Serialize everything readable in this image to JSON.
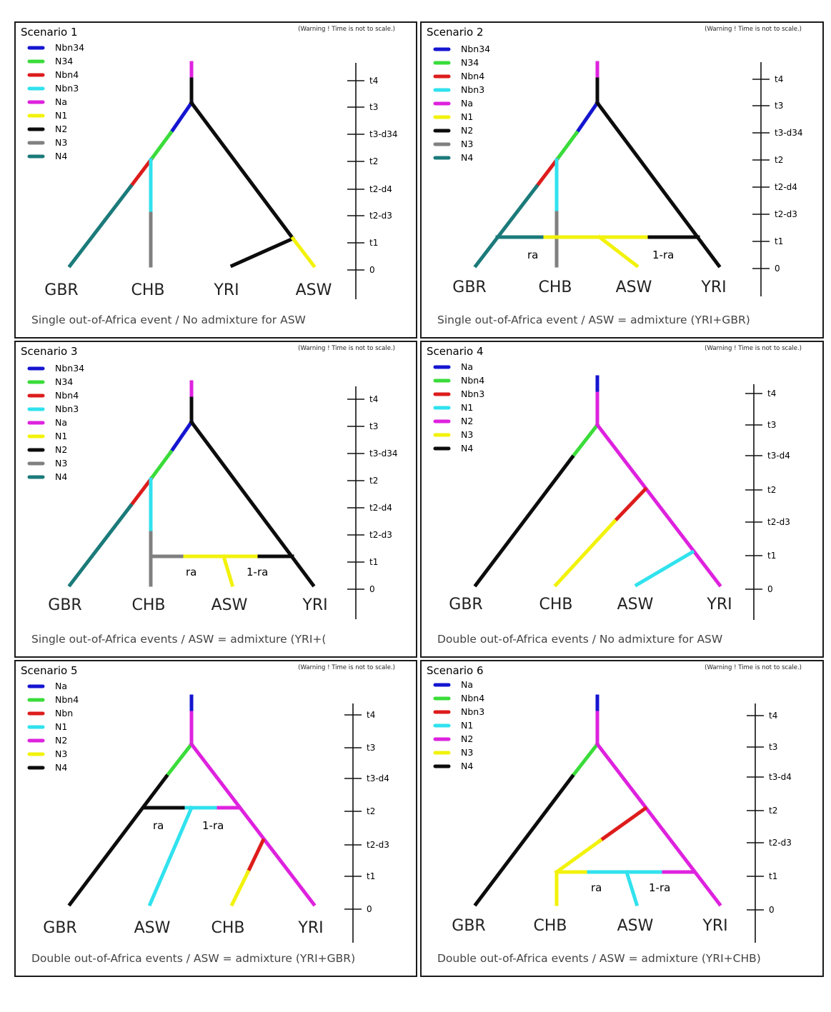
{
  "colors": {
    "blue": "#1515d0",
    "green": "#3adc3a",
    "red": "#dd1c1c",
    "cyan": "#30e2ee",
    "magenta": "#de22de",
    "yellow": "#f2f20c",
    "black": "#0c0c0c",
    "gray": "#808080",
    "teal": "#1b7a7a",
    "border": "#1a1a1a"
  },
  "warning_text": "(Warning ! Time is not to scale.)",
  "scenarios": [
    {
      "title": "Scenario 1",
      "legend": [
        {
          "label": "Nbn34",
          "color": "blue"
        },
        {
          "label": "N34",
          "color": "green"
        },
        {
          "label": "Nbn4",
          "color": "red"
        },
        {
          "label": "Nbn3",
          "color": "cyan"
        },
        {
          "label": "Na",
          "color": "magenta"
        },
        {
          "label": "N1",
          "color": "yellow"
        },
        {
          "label": "N2",
          "color": "black"
        },
        {
          "label": "N3",
          "color": "gray"
        },
        {
          "label": "N4",
          "color": "teal"
        }
      ],
      "time_labels": [
        "t4",
        "t3",
        "t3-d34",
        "t2",
        "t2-d4",
        "t2-d3",
        "t1",
        "0"
      ],
      "populations": [
        "GBR",
        "CHB",
        "YRI",
        "ASW"
      ],
      "caption": "Single out-of-Africa event / No admixture for ASW",
      "admix_labels": []
    },
    {
      "title": "Scenario 2",
      "legend": [
        {
          "label": "Nbn34",
          "color": "blue"
        },
        {
          "label": "N34",
          "color": "green"
        },
        {
          "label": "Nbn4",
          "color": "red"
        },
        {
          "label": "Nbn3",
          "color": "cyan"
        },
        {
          "label": "Na",
          "color": "magenta"
        },
        {
          "label": "N1",
          "color": "yellow"
        },
        {
          "label": "N2",
          "color": "black"
        },
        {
          "label": "N3",
          "color": "gray"
        },
        {
          "label": "N4",
          "color": "teal"
        }
      ],
      "time_labels": [
        "t4",
        "t3",
        "t3-d34",
        "t2",
        "t2-d4",
        "t2-d3",
        "t1",
        "0"
      ],
      "populations": [
        "GBR",
        "CHB",
        "ASW",
        "YRI"
      ],
      "caption": "Single out-of-Africa event / ASW = admixture (YRI+GBR)",
      "admix_labels": [
        "ra",
        "1-ra"
      ]
    },
    {
      "title": "Scenario 3",
      "legend": [
        {
          "label": "Nbn34",
          "color": "blue"
        },
        {
          "label": "N34",
          "color": "green"
        },
        {
          "label": "Nbn4",
          "color": "red"
        },
        {
          "label": "Nbn3",
          "color": "cyan"
        },
        {
          "label": "Na",
          "color": "magenta"
        },
        {
          "label": "N1",
          "color": "yellow"
        },
        {
          "label": "N2",
          "color": "black"
        },
        {
          "label": "N3",
          "color": "gray"
        },
        {
          "label": "N4",
          "color": "teal"
        }
      ],
      "time_labels": [
        "t4",
        "t3",
        "t3-d34",
        "t2",
        "t2-d4",
        "t2-d3",
        "t1",
        "0"
      ],
      "populations": [
        "GBR",
        "CHB",
        "ASW",
        "YRI"
      ],
      "caption": "Single out-of-Africa events / ASW = admixture (YRI+(",
      "admix_labels": [
        "ra",
        "1-ra"
      ]
    },
    {
      "title": "Scenario 4",
      "legend": [
        {
          "label": "Na",
          "color": "blue"
        },
        {
          "label": "Nbn4",
          "color": "green"
        },
        {
          "label": "Nbn3",
          "color": "red"
        },
        {
          "label": "N1",
          "color": "cyan"
        },
        {
          "label": "N2",
          "color": "magenta"
        },
        {
          "label": "N3",
          "color": "yellow"
        },
        {
          "label": "N4",
          "color": "black"
        }
      ],
      "time_labels": [
        "t4",
        "t3",
        "t3-d4",
        "t2",
        "t2-d3",
        "t1",
        "0"
      ],
      "populations": [
        "GBR",
        "CHB",
        "ASW",
        "YRI"
      ],
      "caption": "Double out-of-Africa events / No admixture for ASW",
      "admix_labels": []
    },
    {
      "title": "Scenario 5",
      "legend": [
        {
          "label": "Na",
          "color": "blue"
        },
        {
          "label": "Nbn4",
          "color": "green"
        },
        {
          "label": "Nbn",
          "color": "red"
        },
        {
          "label": "N1",
          "color": "cyan"
        },
        {
          "label": "N2",
          "color": "magenta"
        },
        {
          "label": "N3",
          "color": "yellow"
        },
        {
          "label": "N4",
          "color": "black"
        }
      ],
      "time_labels": [
        "t4",
        "t3",
        "t3-d4",
        "t2",
        "t2-d3",
        "t1",
        "0"
      ],
      "populations": [
        "GBR",
        "ASW",
        "CHB",
        "YRI"
      ],
      "caption": "Double out-of-Africa events / ASW = admixture (YRI+GBR)",
      "admix_labels": [
        "ra",
        "1-ra"
      ]
    },
    {
      "title": "Scenario 6",
      "legend": [
        {
          "label": "Na",
          "color": "blue"
        },
        {
          "label": "Nbn4",
          "color": "green"
        },
        {
          "label": "Nbn3",
          "color": "red"
        },
        {
          "label": "N1",
          "color": "cyan"
        },
        {
          "label": "N2",
          "color": "magenta"
        },
        {
          "label": "N3",
          "color": "yellow"
        },
        {
          "label": "N4",
          "color": "black"
        }
      ],
      "time_labels": [
        "t4",
        "t3",
        "t3-d4",
        "t2",
        "t2-d3",
        "t1",
        "0"
      ],
      "populations": [
        "GBR",
        "CHB",
        "ASW",
        "YRI"
      ],
      "caption": "Double out-of-Africa events / ASW = admixture (YRI+CHB)",
      "admix_labels": [
        "ra",
        "1-ra"
      ]
    }
  ]
}
